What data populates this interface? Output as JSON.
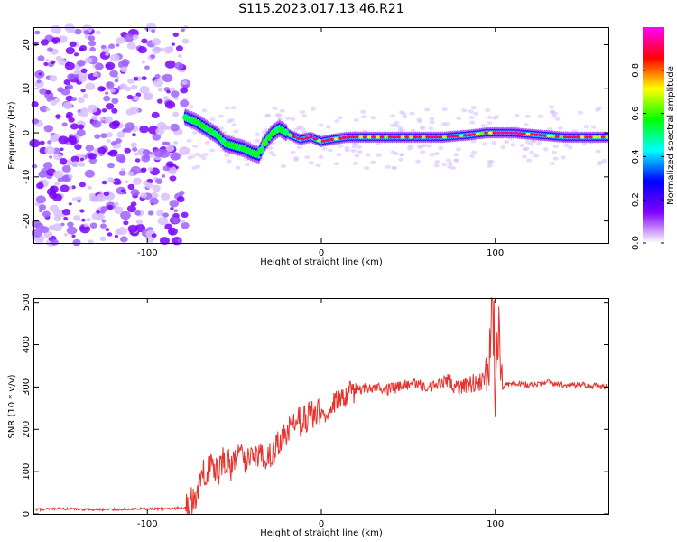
{
  "title": "S115.2023.017.13.46.R21",
  "chart_data": [
    {
      "type": "heatmap",
      "xlabel": "Height of straight line (km)",
      "ylabel": "Frequency (Hz)",
      "xlim": [
        -165,
        165
      ],
      "ylim": [
        -25,
        24
      ],
      "x_ticks": [
        -100,
        0,
        100
      ],
      "y_ticks": [
        20,
        10,
        0,
        -10,
        -20
      ],
      "x_tick_labels": [
        "-100",
        "0",
        "100"
      ],
      "y_tick_labels": [
        "20",
        "10",
        "0",
        "-10",
        "-20"
      ],
      "noise_region_x": [
        -165,
        -78
      ],
      "trace": [
        {
          "x": -78,
          "y": 3.5
        },
        {
          "x": -72,
          "y": 2.5
        },
        {
          "x": -66,
          "y": 1.0
        },
        {
          "x": -60,
          "y": -0.5
        },
        {
          "x": -55,
          "y": -2.5
        },
        {
          "x": -50,
          "y": -3.0
        },
        {
          "x": -45,
          "y": -3.5
        },
        {
          "x": -40,
          "y": -4.5
        },
        {
          "x": -36,
          "y": -5.0
        },
        {
          "x": -33,
          "y": -2.5
        },
        {
          "x": -28,
          "y": 0.0
        },
        {
          "x": -24,
          "y": 1.0
        },
        {
          "x": -18,
          "y": -0.5
        },
        {
          "x": -12,
          "y": -1.5
        },
        {
          "x": -6,
          "y": -1.0
        },
        {
          "x": 0,
          "y": -2.0
        },
        {
          "x": 6,
          "y": -1.5
        },
        {
          "x": 15,
          "y": -1.0
        },
        {
          "x": 30,
          "y": -1.0
        },
        {
          "x": 50,
          "y": -1.0
        },
        {
          "x": 70,
          "y": -1.0
        },
        {
          "x": 85,
          "y": -0.5
        },
        {
          "x": 95,
          "y": 0.0
        },
        {
          "x": 110,
          "y": 0.0
        },
        {
          "x": 125,
          "y": -0.5
        },
        {
          "x": 140,
          "y": -1.0
        },
        {
          "x": 165,
          "y": -1.0
        }
      ],
      "colorbar": {
        "label": "Normalized spectral amplitude",
        "range": [
          0,
          1
        ],
        "ticks": [
          0.0,
          0.2,
          0.4,
          0.6,
          0.8
        ],
        "tick_labels": [
          "0.0",
          "0.2",
          "0.4",
          "0.6",
          "0.8"
        ],
        "colors": [
          "#ffffff",
          "#8000ff",
          "#0000ff",
          "#00ffff",
          "#00ff00",
          "#ffff00",
          "#ff0000",
          "#ff00ff"
        ]
      }
    },
    {
      "type": "line",
      "xlabel": "Height of straight line (km)",
      "ylabel": "SNR (10 * v/v)",
      "xlim": [
        -165,
        165
      ],
      "ylim": [
        0,
        510
      ],
      "x_ticks": [
        -100,
        0,
        100
      ],
      "y_ticks": [
        0,
        100,
        200,
        300,
        400,
        500
      ],
      "x_tick_labels": [
        "-100",
        "0",
        "100"
      ],
      "y_tick_labels": [
        "0",
        "100",
        "200",
        "300",
        "400",
        "500"
      ],
      "color": "#e8322c",
      "series": [
        {
          "x": [
            -165,
            -150,
            -130,
            -110,
            -90,
            -78,
            -72,
            -68,
            -64,
            -60,
            -56,
            -52,
            -48,
            -44,
            -40,
            -36,
            -32,
            -28,
            -24,
            -20,
            -16,
            -12,
            -8,
            -4,
            0,
            4,
            8,
            12,
            16,
            20,
            26,
            32,
            38,
            44,
            50,
            56,
            62,
            68,
            74,
            80,
            86,
            92,
            96,
            98,
            100,
            102,
            104,
            110,
            120,
            130,
            140,
            150,
            165
          ],
          "values": [
            10,
            12,
            10,
            11,
            12,
            15,
            40,
            90,
            120,
            95,
            130,
            110,
            145,
            120,
            150,
            140,
            130,
            150,
            165,
            185,
            205,
            220,
            230,
            240,
            230,
            250,
            265,
            270,
            285,
            290,
            300,
            300,
            295,
            300,
            305,
            305,
            300,
            305,
            310,
            305,
            310,
            315,
            300,
            480,
            280,
            470,
            300,
            310,
            305,
            310,
            305,
            305,
            300
          ]
        }
      ]
    }
  ]
}
